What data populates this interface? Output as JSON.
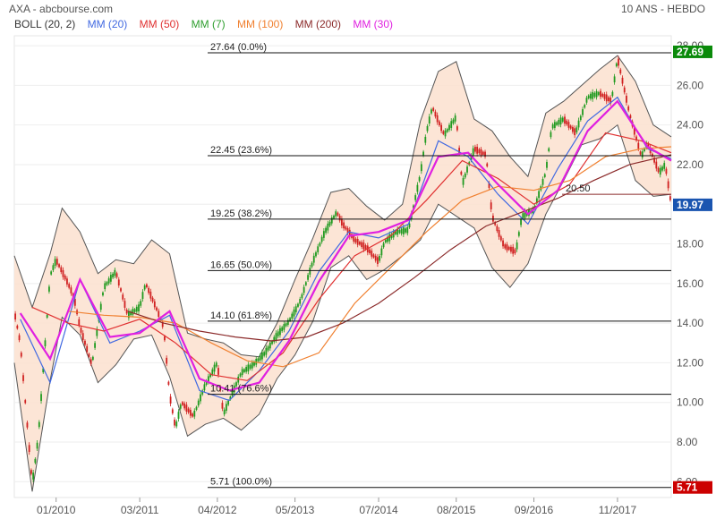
{
  "header": {
    "title": "AXA - abcbourse.com",
    "period": "10 ANS - HEBDO"
  },
  "legend": [
    {
      "label": "BOLL (20, 2)",
      "color": "#333333"
    },
    {
      "label": "MM (20)",
      "color": "#4169e1"
    },
    {
      "label": "MM (50)",
      "color": "#e03030"
    },
    {
      "label": "MM (7)",
      "color": "#2e9e2e"
    },
    {
      "label": "MM (100)",
      "color": "#f08030"
    },
    {
      "label": "MM (200)",
      "color": "#8b2a2a"
    },
    {
      "label": "MM (30)",
      "color": "#e020e0"
    }
  ],
  "chart_data": {
    "type": "line",
    "title": "",
    "xlabel": "",
    "ylabel": "",
    "ylim": [
      5.2,
      28.5
    ],
    "y_ticks": [
      6,
      8,
      10,
      12,
      14,
      16,
      18,
      20,
      22,
      24,
      26,
      28
    ],
    "y_tick_labels": [
      "6.00",
      "8.00",
      "10.00",
      "12.00",
      "14.00",
      "16.00",
      "18.00",
      "20.00",
      "22.00",
      "24.00",
      "26.00",
      "28.00"
    ],
    "x_range": [
      "2009-06",
      "2018-08"
    ],
    "x_ticks": [
      {
        "date": "2010-01",
        "label": "01/2010"
      },
      {
        "date": "2011-03",
        "label": "03/2011"
      },
      {
        "date": "2012-04",
        "label": "04/2012"
      },
      {
        "date": "2013-05",
        "label": "05/2013"
      },
      {
        "date": "2014-07",
        "label": "07/2014"
      },
      {
        "date": "2015-08",
        "label": "08/2015"
      },
      {
        "date": "2016-09",
        "label": "09/2016"
      },
      {
        "date": "2017-11",
        "label": "11/2017"
      }
    ],
    "fibonacci": [
      {
        "label": "27.64  (0.0%)",
        "value": 27.64
      },
      {
        "label": "22.45  (23.6%)",
        "value": 22.45
      },
      {
        "label": "19.25  (38.2%)",
        "value": 19.25
      },
      {
        "label": "16.65  (50.0%)",
        "value": 16.65
      },
      {
        "label": "14.10  (61.8%)",
        "value": 14.1
      },
      {
        "label": "10.41  (76.6%)",
        "value": 10.41
      },
      {
        "label": "5.71  (100.0%)",
        "value": 5.71
      }
    ],
    "support_line": {
      "label": "20.50",
      "value": 20.5
    },
    "price_badges": [
      {
        "label": "27.69",
        "value": 27.69,
        "color": "#0a8a0a"
      },
      {
        "label": "19.97",
        "value": 19.97,
        "color": "#1a55b0"
      },
      {
        "label": "5.71",
        "value": 5.71,
        "color": "#cc0000"
      }
    ],
    "price": {
      "name": "AXA",
      "x": [
        "2009-06",
        "2009-07",
        "2009-09",
        "2009-10",
        "2009-12",
        "2010-01",
        "2010-03",
        "2010-04",
        "2010-05",
        "2010-07",
        "2010-09",
        "2010-11",
        "2011-01",
        "2011-03",
        "2011-04",
        "2011-06",
        "2011-07",
        "2011-08",
        "2011-09",
        "2011-10",
        "2011-12",
        "2012-02",
        "2012-04",
        "2012-05",
        "2012-06",
        "2012-08",
        "2012-10",
        "2012-12",
        "2013-02",
        "2013-04",
        "2013-05",
        "2013-06",
        "2013-08",
        "2013-10",
        "2013-12",
        "2014-01",
        "2014-03",
        "2014-05",
        "2014-07",
        "2014-08",
        "2014-10",
        "2014-12",
        "2015-02",
        "2015-03",
        "2015-04",
        "2015-06",
        "2015-08",
        "2015-09",
        "2015-11",
        "2016-01",
        "2016-02",
        "2016-04",
        "2016-06",
        "2016-07",
        "2016-09",
        "2016-11",
        "2016-12",
        "2017-02",
        "2017-04",
        "2017-06",
        "2017-08",
        "2017-10",
        "2017-11",
        "2017-12",
        "2018-01",
        "2018-03",
        "2018-04",
        "2018-06",
        "2018-07",
        "2018-08"
      ],
      "close": [
        14.6,
        13.0,
        5.9,
        8.2,
        16.4,
        17.2,
        16.0,
        15.3,
        13.8,
        11.9,
        15.8,
        16.6,
        14.4,
        14.8,
        16.0,
        14.6,
        13.8,
        10.4,
        8.7,
        10.0,
        9.3,
        10.9,
        12.0,
        9.4,
        10.1,
        11.5,
        11.9,
        12.5,
        13.4,
        14.1,
        14.6,
        15.2,
        17.1,
        18.6,
        19.6,
        19.0,
        18.2,
        17.8,
        17.1,
        18.1,
        18.6,
        18.7,
        21.5,
        23.6,
        24.9,
        23.5,
        24.4,
        21.0,
        22.8,
        22.5,
        19.4,
        17.9,
        17.6,
        19.4,
        19.7,
        21.6,
        23.9,
        24.3,
        23.6,
        25.4,
        25.6,
        25.2,
        27.4,
        26.0,
        24.6,
        22.4,
        23.1,
        21.6,
        22.0,
        19.97
      ]
    },
    "series": [
      {
        "name": "MM (20)",
        "color": "#4169e1",
        "x": [
          "2009-07",
          "2009-12",
          "2010-05",
          "2010-10",
          "2011-03",
          "2011-08",
          "2012-01",
          "2012-06",
          "2012-11",
          "2013-04",
          "2013-09",
          "2014-02",
          "2014-07",
          "2014-12",
          "2015-05",
          "2015-10",
          "2016-03",
          "2016-08",
          "2017-01",
          "2017-06",
          "2017-11",
          "2018-04",
          "2018-08"
        ],
        "values": [
          14.2,
          11.0,
          16.2,
          13.0,
          13.6,
          14.4,
          10.6,
          10.1,
          11.6,
          13.6,
          16.6,
          18.6,
          18.3,
          19.0,
          23.2,
          22.4,
          20.5,
          19.0,
          21.8,
          24.2,
          25.4,
          22.8,
          22.3
        ]
      },
      {
        "name": "MM (50)",
        "color": "#e03030",
        "x": [
          "2009-09",
          "2010-03",
          "2010-09",
          "2011-03",
          "2011-09",
          "2012-03",
          "2012-09",
          "2013-03",
          "2013-09",
          "2014-03",
          "2014-09",
          "2015-03",
          "2015-09",
          "2016-03",
          "2016-09",
          "2017-03",
          "2017-09",
          "2018-03",
          "2018-08"
        ],
        "values": [
          14.8,
          14.0,
          13.6,
          14.2,
          13.0,
          11.4,
          11.1,
          12.5,
          15.2,
          17.4,
          18.4,
          20.2,
          22.2,
          21.3,
          20.0,
          21.0,
          23.6,
          23.2,
          22.6
        ]
      },
      {
        "name": "MM (100)",
        "color": "#f08030",
        "x": [
          "2010-03",
          "2010-09",
          "2011-03",
          "2011-09",
          "2012-03",
          "2012-09",
          "2013-03",
          "2013-09",
          "2014-03",
          "2014-09",
          "2015-03",
          "2015-09",
          "2016-03",
          "2016-09",
          "2017-03",
          "2017-09",
          "2018-03",
          "2018-08"
        ],
        "values": [
          14.6,
          14.4,
          14.3,
          14.0,
          13.0,
          12.1,
          11.8,
          12.5,
          15.0,
          16.8,
          18.6,
          20.2,
          20.9,
          20.7,
          21.2,
          22.4,
          22.8,
          22.9
        ]
      },
      {
        "name": "MM (200)",
        "color": "#8b2a2a",
        "x": [
          "2011-01",
          "2011-07",
          "2012-01",
          "2012-07",
          "2013-01",
          "2013-07",
          "2014-01",
          "2014-07",
          "2015-01",
          "2015-07",
          "2016-01",
          "2016-07",
          "2017-01",
          "2017-07",
          "2018-01",
          "2018-08"
        ],
        "values": [
          14.6,
          14.0,
          13.6,
          13.3,
          13.1,
          13.3,
          14.0,
          15.0,
          16.3,
          17.7,
          18.9,
          19.6,
          20.3,
          21.2,
          22.0,
          22.5
        ]
      },
      {
        "name": "MM (30)",
        "color": "#e020e0",
        "x": [
          "2009-07",
          "2009-12",
          "2010-05",
          "2010-10",
          "2011-03",
          "2011-08",
          "2012-01",
          "2012-06",
          "2012-11",
          "2013-04",
          "2013-09",
          "2014-02",
          "2014-07",
          "2014-12",
          "2015-05",
          "2015-10",
          "2016-03",
          "2016-08",
          "2017-01",
          "2017-06",
          "2017-11",
          "2018-04",
          "2018-08"
        ],
        "values": [
          14.5,
          12.2,
          16.2,
          13.3,
          13.5,
          14.6,
          11.2,
          10.6,
          11.0,
          13.1,
          16.1,
          18.4,
          18.6,
          19.2,
          22.4,
          22.6,
          21.0,
          19.5,
          20.7,
          23.7,
          25.2,
          22.9,
          22.2
        ]
      }
    ],
    "bollinger": {
      "name": "BOLL (20, 2)",
      "x": [
        "2009-06",
        "2009-09",
        "2009-12",
        "2010-02",
        "2010-05",
        "2010-08",
        "2010-11",
        "2011-02",
        "2011-05",
        "2011-08",
        "2011-11",
        "2012-02",
        "2012-05",
        "2012-08",
        "2012-11",
        "2013-02",
        "2013-05",
        "2013-08",
        "2013-11",
        "2014-02",
        "2014-05",
        "2014-08",
        "2014-11",
        "2015-02",
        "2015-05",
        "2015-08",
        "2015-11",
        "2016-02",
        "2016-05",
        "2016-08",
        "2016-11",
        "2017-02",
        "2017-05",
        "2017-08",
        "2017-11",
        "2018-02",
        "2018-05",
        "2018-08"
      ],
      "upper": [
        17.4,
        14.8,
        17.5,
        19.8,
        18.6,
        16.5,
        17.2,
        17.0,
        18.2,
        17.5,
        13.5,
        13.2,
        13.0,
        12.4,
        12.3,
        14.0,
        16.2,
        18.3,
        20.6,
        20.8,
        19.9,
        19.2,
        20.0,
        24.2,
        26.7,
        27.2,
        24.3,
        23.7,
        22.4,
        21.4,
        24.6,
        25.2,
        26.0,
        26.8,
        27.5,
        26.2,
        24.0,
        23.4
      ],
      "lower": [
        12.0,
        5.5,
        11.1,
        14.3,
        13.4,
        11.0,
        11.9,
        13.2,
        13.4,
        11.3,
        8.3,
        8.9,
        9.2,
        8.6,
        9.4,
        11.2,
        12.4,
        14.1,
        16.8,
        17.4,
        16.2,
        16.7,
        17.4,
        18.2,
        20.0,
        19.4,
        18.8,
        16.8,
        15.8,
        17.0,
        19.5,
        21.2,
        23.0,
        23.3,
        24.0,
        21.2,
        20.4,
        20.5
      ]
    }
  }
}
